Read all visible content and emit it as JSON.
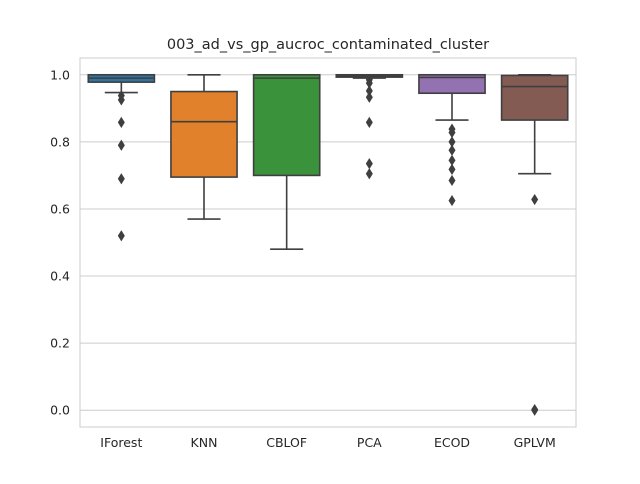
{
  "chart_data": {
    "type": "box",
    "title": "003_ad_vs_gp_aucroc_contaminated_cluster",
    "xlabel": "",
    "ylabel": "",
    "ylim": [
      -0.05,
      1.05
    ],
    "yticks": [
      0.0,
      0.2,
      0.4,
      0.6,
      0.8,
      1.0
    ],
    "ytick_labels": [
      "0.0",
      "0.2",
      "0.4",
      "0.6",
      "0.8",
      "1.0"
    ],
    "grid": "horizontal",
    "categories": [
      "IForest",
      "KNN",
      "CBLOF",
      "PCA",
      "ECOD",
      "GPLVM"
    ],
    "boxes": [
      {
        "label": "IForest",
        "color": "#3274a1",
        "whisker_low": 0.947,
        "q1": 0.978,
        "median": 0.99,
        "q3": 1.0,
        "whisker_high": 1.0,
        "outliers": [
          0.938,
          0.925,
          0.858,
          0.79,
          0.69,
          0.52
        ]
      },
      {
        "label": "KNN",
        "color": "#e1812c",
        "whisker_low": 0.57,
        "q1": 0.695,
        "median": 0.86,
        "q3": 0.95,
        "whisker_high": 1.0,
        "outliers": []
      },
      {
        "label": "CBLOF",
        "color": "#3a923a",
        "whisker_low": 0.48,
        "q1": 0.7,
        "median": 0.99,
        "q3": 1.0,
        "whisker_high": 1.0,
        "outliers": []
      },
      {
        "label": "PCA",
        "color": "#c03d3e",
        "whisker_low": 0.99,
        "q1": 0.993,
        "median": 0.997,
        "q3": 1.0,
        "whisker_high": 1.0,
        "outliers": [
          0.985,
          0.975,
          0.952,
          0.933,
          0.858,
          0.735,
          0.705
        ]
      },
      {
        "label": "ECOD",
        "color": "#9372b2",
        "whisker_low": 0.865,
        "q1": 0.945,
        "median": 0.992,
        "q3": 1.0,
        "whisker_high": 1.0,
        "outliers": [
          0.838,
          0.828,
          0.8,
          0.775,
          0.745,
          0.718,
          0.685,
          0.625
        ]
      },
      {
        "label": "GPLVM",
        "color": "#845b53",
        "whisker_low": 0.705,
        "q1": 0.865,
        "median": 0.965,
        "q3": 0.998,
        "whisker_high": 1.0,
        "outliers": [
          0.628,
          0.002,
          0.0
        ]
      }
    ]
  }
}
